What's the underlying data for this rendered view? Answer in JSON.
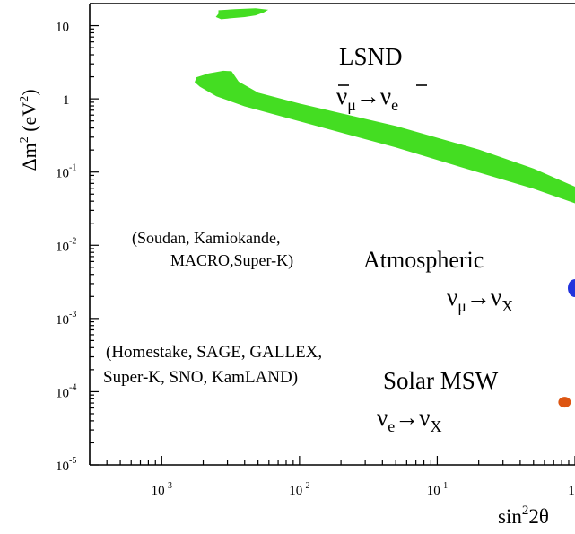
{
  "chart_data": {
    "type": "area",
    "xlabel": {
      "base": "sin",
      "sup": "2",
      "rest": "2θ"
    },
    "ylabel": {
      "prefix": "Δm",
      "sup1": "2",
      "open": " (eV",
      "sup2": "2",
      "close": ")"
    },
    "x_scale": "log",
    "y_scale": "log",
    "xlim": [
      0.0003,
      1
    ],
    "ylim": [
      1e-05,
      20
    ],
    "x_ticks": [
      {
        "value": 0.001,
        "base": "10",
        "exp": "-3"
      },
      {
        "value": 0.01,
        "base": "10",
        "exp": "-2"
      },
      {
        "value": 0.1,
        "base": "10",
        "exp": "-1"
      },
      {
        "value": 1,
        "base": "1",
        "exp": ""
      }
    ],
    "y_ticks": [
      {
        "value": 10,
        "base": "10",
        "exp": ""
      },
      {
        "value": 1,
        "base": "1",
        "exp": ""
      },
      {
        "value": 0.1,
        "base": "10",
        "exp": "-1"
      },
      {
        "value": 0.01,
        "base": "10",
        "exp": "-2"
      },
      {
        "value": 0.001,
        "base": "10",
        "exp": "-3"
      },
      {
        "value": 0.0001,
        "base": "10",
        "exp": "-4"
      },
      {
        "value": 1e-05,
        "base": "10",
        "exp": "-5"
      }
    ],
    "regions": [
      {
        "id": "lsnd-upper",
        "color": "#44dd22",
        "polygon": [
          [
            0.0026,
            16
          ],
          [
            0.0034,
            16.5
          ],
          [
            0.0048,
            17
          ],
          [
            0.0058,
            16.3
          ],
          [
            0.0055,
            15.4
          ],
          [
            0.0052,
            14.8
          ],
          [
            0.0048,
            14
          ],
          [
            0.004,
            13.3
          ],
          [
            0.0032,
            12.8
          ],
          [
            0.0027,
            12.4
          ],
          [
            0.0025,
            13.2
          ],
          [
            0.0026,
            14.5
          ]
        ]
      },
      {
        "id": "lsnd-main",
        "color": "#44dd22",
        "polygon": [
          [
            0.0018,
            1.95
          ],
          [
            0.0022,
            2.2
          ],
          [
            0.0028,
            2.38
          ],
          [
            0.0032,
            2.35
          ],
          [
            0.0036,
            1.7
          ],
          [
            0.005,
            1.2
          ],
          [
            0.01,
            0.85
          ],
          [
            0.05,
            0.42
          ],
          [
            0.2,
            0.2
          ],
          [
            0.5,
            0.11
          ],
          [
            1,
            0.062
          ],
          [
            1,
            0.038
          ],
          [
            0.5,
            0.06
          ],
          [
            0.2,
            0.1
          ],
          [
            0.05,
            0.22
          ],
          [
            0.01,
            0.5
          ],
          [
            0.004,
            0.8
          ],
          [
            0.0025,
            1.1
          ],
          [
            0.0019,
            1.48
          ],
          [
            0.00175,
            1.7
          ]
        ]
      }
    ],
    "points": [
      {
        "id": "atmospheric-point",
        "x": 1,
        "y": 0.0026,
        "color": "#2233dd"
      },
      {
        "id": "solar-point",
        "x": 0.84,
        "y": 7.2e-05,
        "color": "#dd5511"
      }
    ],
    "annotations": {
      "lsnd": {
        "title": "LSND",
        "from": "ν",
        "from_sub": "μ",
        "arrow": "→",
        "to": "ν",
        "to_sub": "e"
      },
      "atmospheric": {
        "experiments_line1": "(Soudan, Kamiokande,",
        "experiments_line2": "MACRO,Super-K)",
        "title": "Atmospheric",
        "from": "ν",
        "from_sub": "μ",
        "arrow": "→",
        "to": "ν",
        "to_sub": "X"
      },
      "solar": {
        "experiments_line1": "(Homestake, SAGE, GALLEX,",
        "experiments_line2": "Super-K, SNO, KamLAND)",
        "title": "Solar MSW",
        "from": "ν",
        "from_sub": "e",
        "arrow": "→",
        "to": "ν",
        "to_sub": "X"
      }
    }
  }
}
